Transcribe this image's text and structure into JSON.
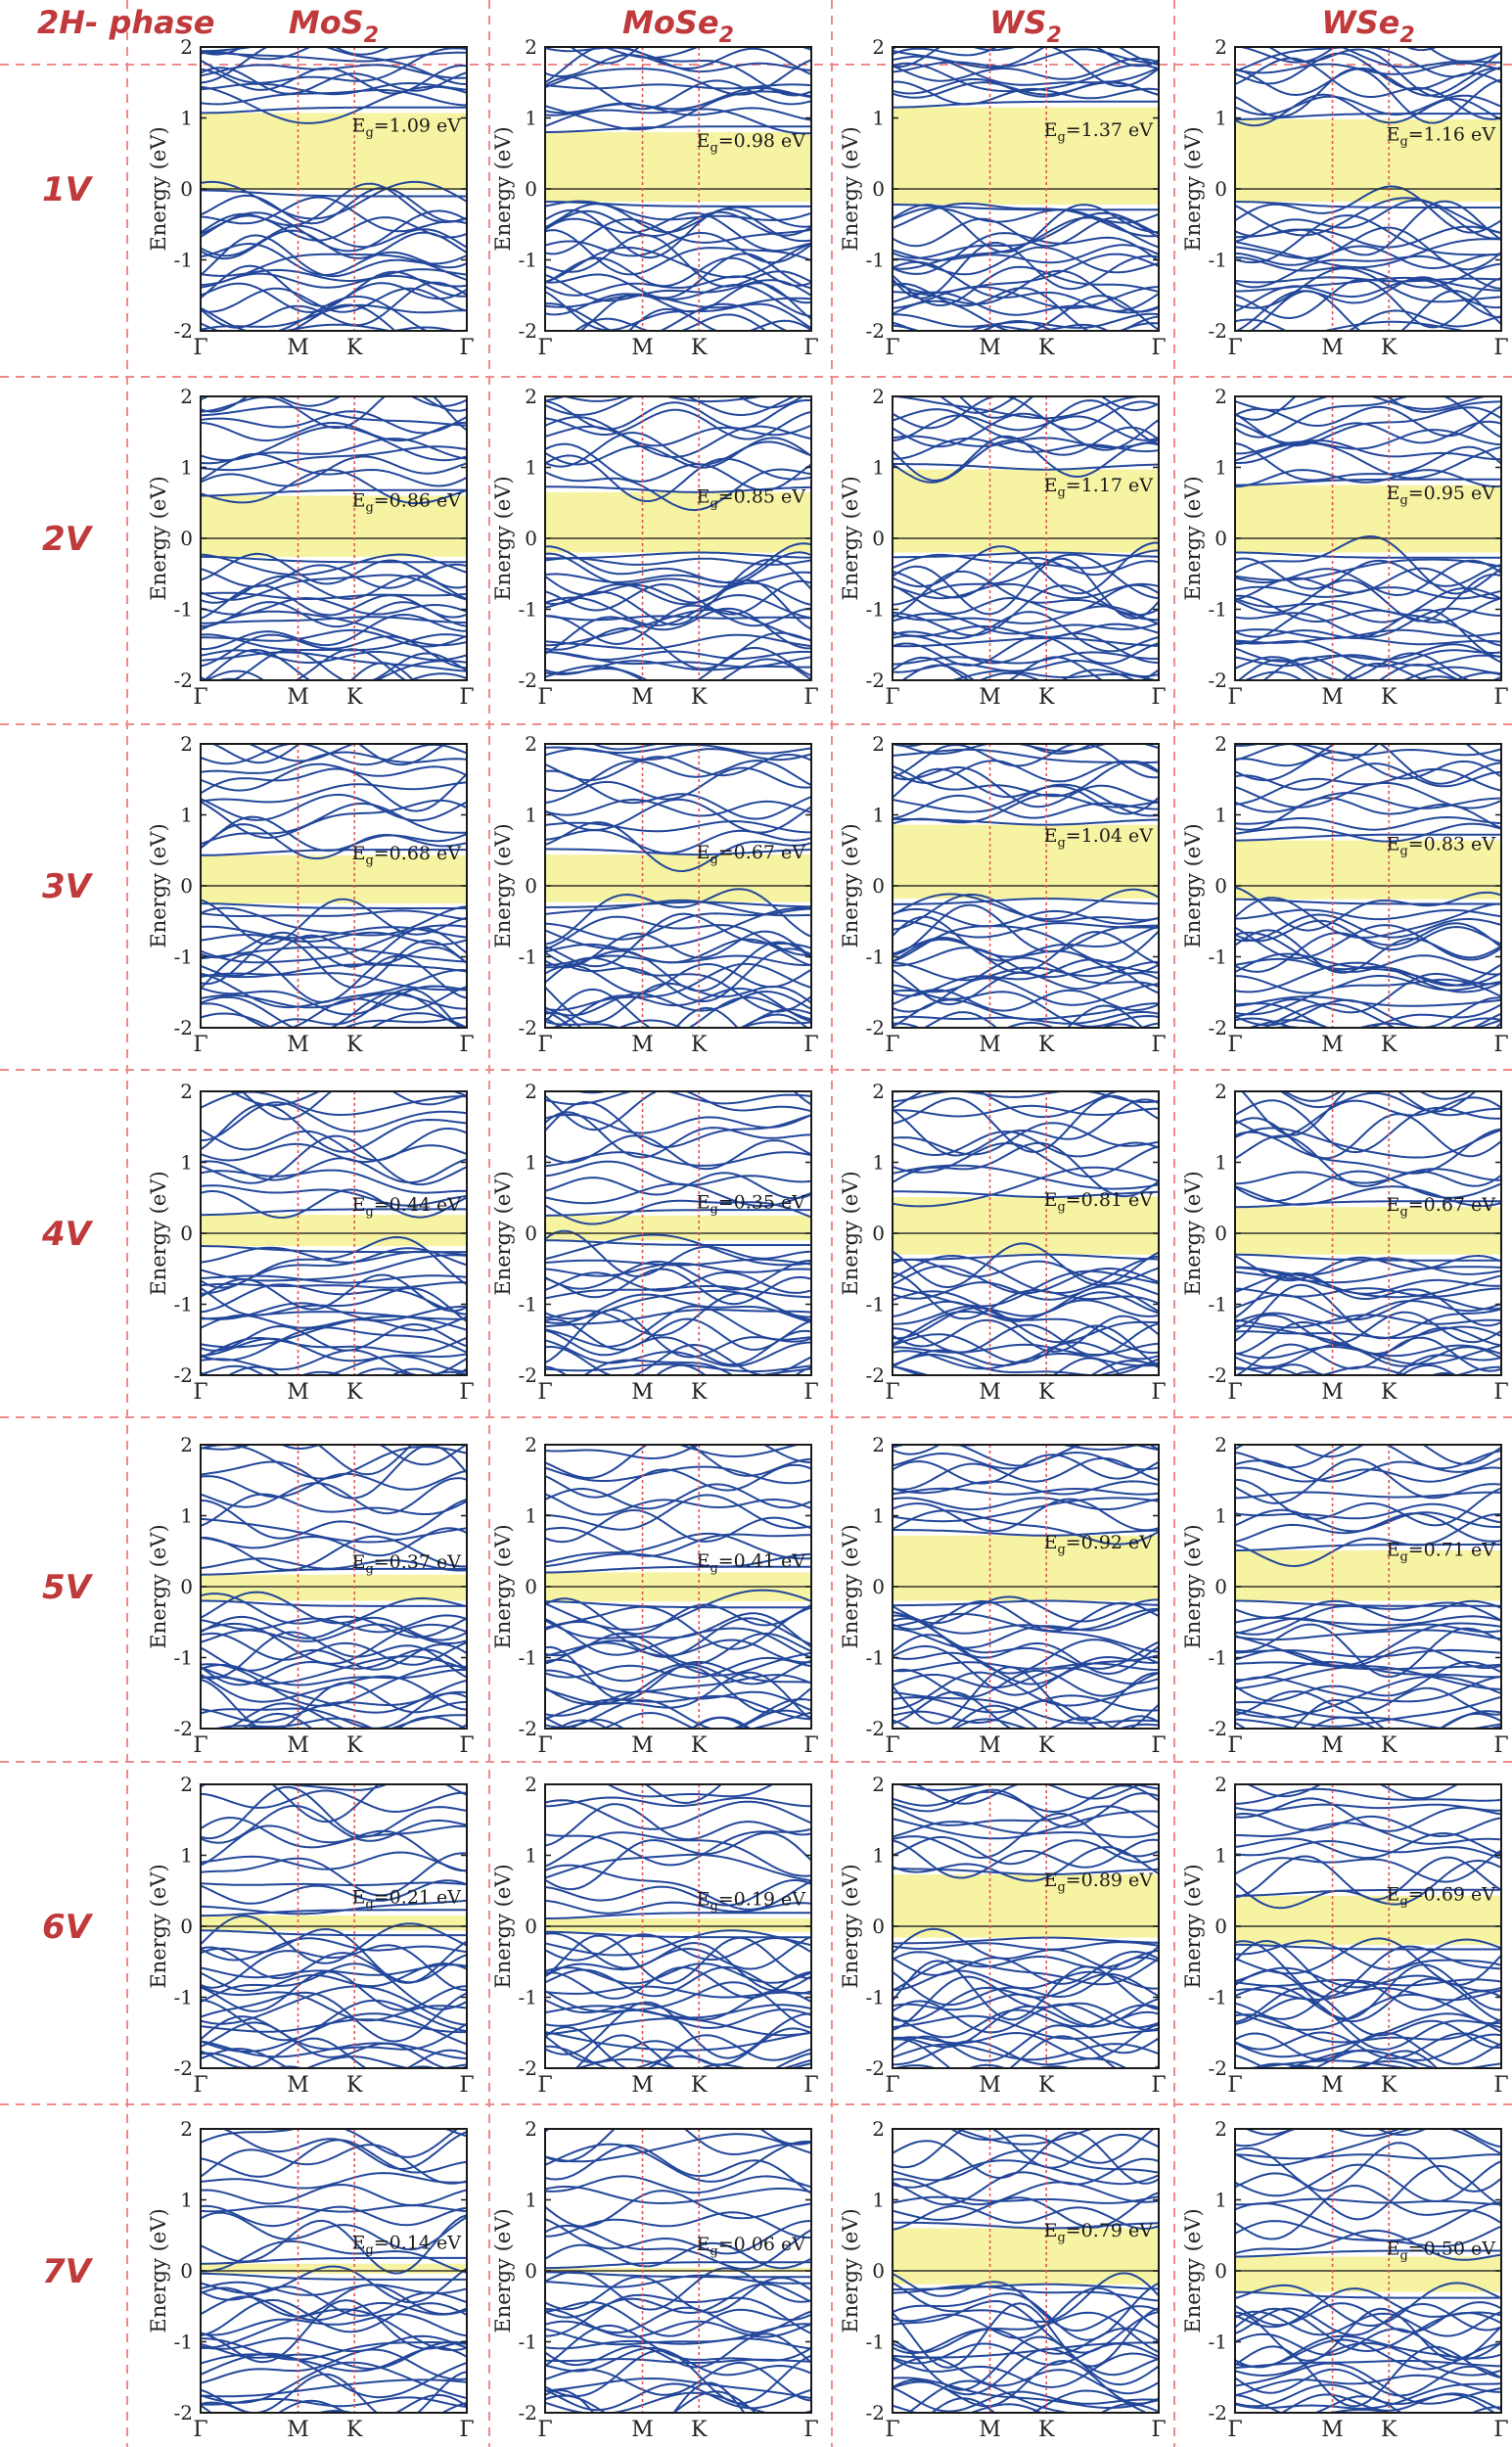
{
  "header": {
    "corner": "2H- phase",
    "materials": [
      {
        "base": "MoS",
        "sub": "2"
      },
      {
        "base": "MoSe",
        "sub": "2"
      },
      {
        "base": "WS",
        "sub": "2"
      },
      {
        "base": "WSe",
        "sub": "2"
      }
    ]
  },
  "rows": [
    "1V",
    "2V",
    "3V",
    "4V",
    "5V",
    "6V",
    "7V"
  ],
  "colors": {
    "band": "#23479a",
    "gap_fill": "#f6f3a3",
    "separator": "#f08a8a",
    "k_marker": "#e25555",
    "label": "#c0393b"
  },
  "chart_data": {
    "type": "line",
    "kind": "band-structure",
    "ylabel": "Energy (eV)",
    "ylim": [
      -2,
      2
    ],
    "yticks": [
      "2",
      "1",
      "0",
      "-1",
      "-2"
    ],
    "k_labels": [
      "Γ",
      "M",
      "K",
      "Γ"
    ],
    "k_positions": [
      0,
      0.366,
      0.578,
      1
    ],
    "gap_symbol": "E",
    "gap_sub": "g",
    "gap_unit": "eV",
    "panels": [
      [
        {
          "eg": "1.09",
          "vbm": -0.02,
          "cbm": 1.07,
          "dir": 0
        },
        {
          "eg": "0.98",
          "vbm": -0.18,
          "cbm": 0.8,
          "dir": 0
        },
        {
          "eg": "1.37",
          "vbm": -0.22,
          "cbm": 1.15,
          "dir": 0
        },
        {
          "eg": "1.16",
          "vbm": -0.18,
          "cbm": 0.98,
          "dir": 0
        }
      ],
      [
        {
          "eg": "0.86",
          "vbm": -0.26,
          "cbm": 0.6,
          "dir": 0
        },
        {
          "eg": "0.85",
          "vbm": -0.2,
          "cbm": 0.65,
          "dir": 1
        },
        {
          "eg": "1.17",
          "vbm": -0.2,
          "cbm": 0.97,
          "dir": 1
        },
        {
          "eg": "0.95",
          "vbm": -0.2,
          "cbm": 0.75,
          "dir": 0
        }
      ],
      [
        {
          "eg": "0.68",
          "vbm": -0.25,
          "cbm": 0.43,
          "dir": 0
        },
        {
          "eg": "0.67",
          "vbm": -0.23,
          "cbm": 0.44,
          "dir": 1
        },
        {
          "eg": "1.04",
          "vbm": -0.18,
          "cbm": 0.86,
          "dir": 1
        },
        {
          "eg": "0.83",
          "vbm": -0.19,
          "cbm": 0.64,
          "dir": 0
        }
      ],
      [
        {
          "eg": "0.44",
          "vbm": -0.18,
          "cbm": 0.26,
          "dir": 0
        },
        {
          "eg": "0.35",
          "vbm": -0.1,
          "cbm": 0.25,
          "dir": 0
        },
        {
          "eg": "0.81",
          "vbm": -0.3,
          "cbm": 0.51,
          "dir": 1
        },
        {
          "eg": "0.67",
          "vbm": -0.3,
          "cbm": 0.37,
          "dir": 0
        }
      ],
      [
        {
          "eg": "0.37",
          "vbm": -0.2,
          "cbm": 0.17,
          "dir": 0
        },
        {
          "eg": "0.41",
          "vbm": -0.21,
          "cbm": 0.2,
          "dir": 0
        },
        {
          "eg": "0.92",
          "vbm": -0.2,
          "cbm": 0.72,
          "dir": 1
        },
        {
          "eg": "0.71",
          "vbm": -0.2,
          "cbm": 0.51,
          "dir": 0
        }
      ],
      [
        {
          "eg": "0.21",
          "vbm": -0.06,
          "cbm": 0.15,
          "dir": 0
        },
        {
          "eg": "0.19",
          "vbm": -0.08,
          "cbm": 0.11,
          "dir": 0
        },
        {
          "eg": "0.89",
          "vbm": -0.16,
          "cbm": 0.73,
          "dir": 1
        },
        {
          "eg": "0.69",
          "vbm": -0.26,
          "cbm": 0.43,
          "dir": 0
        }
      ],
      [
        {
          "eg": "0.14",
          "vbm": -0.04,
          "cbm": 0.1,
          "dir": 0
        },
        {
          "eg": "0.06",
          "vbm": -0.02,
          "cbm": 0.04,
          "dir": 0
        },
        {
          "eg": "0.79",
          "vbm": -0.19,
          "cbm": 0.6,
          "dir": 1
        },
        {
          "eg": "0.50",
          "vbm": -0.3,
          "cbm": 0.2,
          "dir": 0
        }
      ]
    ]
  }
}
